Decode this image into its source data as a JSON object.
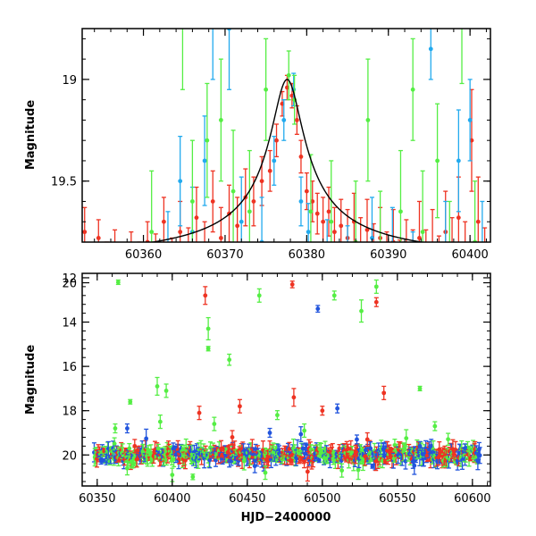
{
  "chart_data": [
    {
      "type": "scatter",
      "panel": "top",
      "xlabel": "",
      "ylabel": "Magnitude",
      "xlim": [
        60352.5,
        60402.5
      ],
      "ylim": [
        19.8,
        18.75
      ],
      "y_inverted": true,
      "xticks": [
        60360,
        60370,
        60380,
        60390,
        60400
      ],
      "yticks": [
        19,
        19.5,
        20
      ],
      "series": [
        {
          "color": "#ee3322",
          "points": [
            [
              60352.8,
              19.75,
              0.12
            ],
            [
              60353.5,
              20.02,
              0.1
            ],
            [
              60354.5,
              19.78,
              0.09
            ],
            [
              60355.5,
              19.9,
              0.1
            ],
            [
              60356.5,
              19.82,
              0.08
            ],
            [
              60357.5,
              19.95,
              0.1
            ],
            [
              60358.5,
              19.85,
              0.1
            ],
            [
              60359.5,
              19.92,
              0.12
            ],
            [
              60360.5,
              19.8,
              0.1
            ],
            [
              60361.5,
              19.88,
              0.12
            ],
            [
              60362.5,
              19.7,
              0.12
            ],
            [
              60363.5,
              19.9,
              0.12
            ],
            [
              60364.5,
              19.75,
              0.15
            ],
            [
              60365.5,
              19.85,
              0.12
            ],
            [
              60366.5,
              19.68,
              0.15
            ],
            [
              60367.5,
              19.82,
              0.12
            ],
            [
              60368.5,
              19.6,
              0.15
            ],
            [
              60369.5,
              19.78,
              0.15
            ],
            [
              60370.5,
              19.66,
              0.14
            ],
            [
              60371.5,
              19.72,
              0.14
            ],
            [
              60372.5,
              19.58,
              0.14
            ],
            [
              60373.5,
              19.6,
              0.12
            ],
            [
              60374.5,
              19.5,
              0.12
            ],
            [
              60375.5,
              19.45,
              0.1
            ],
            [
              60376.3,
              19.3,
              0.08
            ],
            [
              60377.0,
              19.12,
              0.06
            ],
            [
              60377.6,
              19.04,
              0.06
            ],
            [
              60378.2,
              19.08,
              0.06
            ],
            [
              60378.8,
              19.2,
              0.07
            ],
            [
              60379.3,
              19.38,
              0.08
            ],
            [
              60380.0,
              19.55,
              0.09
            ],
            [
              60380.7,
              19.6,
              0.1
            ],
            [
              60381.3,
              19.66,
              0.1
            ],
            [
              60382,
              19.7,
              0.12
            ],
            [
              60382.7,
              19.65,
              0.12
            ],
            [
              60383.4,
              19.75,
              0.12
            ],
            [
              60384.2,
              19.72,
              0.13
            ],
            [
              60385,
              19.78,
              0.14
            ],
            [
              60385.8,
              19.7,
              0.14
            ],
            [
              60386.6,
              19.82,
              0.14
            ],
            [
              60387.4,
              19.74,
              0.15
            ],
            [
              60388.2,
              19.86,
              0.15
            ],
            [
              60389,
              19.78,
              0.15
            ],
            [
              60389.8,
              19.9,
              0.15
            ],
            [
              60390.6,
              19.8,
              0.16
            ],
            [
              60391.4,
              19.95,
              0.16
            ],
            [
              60392.2,
              19.85,
              0.16
            ],
            [
              60393,
              19.9,
              0.16
            ],
            [
              60393.8,
              19.78,
              0.18
            ],
            [
              60394.6,
              19.92,
              0.18
            ],
            [
              60395.4,
              19.82,
              0.18
            ],
            [
              60396.2,
              19.95,
              0.18
            ],
            [
              60397,
              19.75,
              0.2
            ],
            [
              60397.8,
              19.88,
              0.2
            ],
            [
              60398.6,
              19.68,
              0.2
            ],
            [
              60399.4,
              19.9,
              0.2
            ],
            [
              60400.2,
              19.3,
              0.25
            ],
            [
              60401,
              19.7,
              0.22
            ],
            [
              60401.8,
              19.95,
              0.22
            ]
          ]
        },
        {
          "color": "#22aaee",
          "points": [
            [
              60363,
              19.9,
              0.25
            ],
            [
              60364.5,
              19.5,
              0.22
            ],
            [
              60366,
              19.75,
              0.22
            ],
            [
              60367.5,
              19.4,
              0.22
            ],
            [
              60368.5,
              18.7,
              0.3
            ],
            [
              60370.5,
              18.75,
              0.3
            ],
            [
              60372,
              19.7,
              0.22
            ],
            [
              60374.5,
              19.8,
              0.22
            ],
            [
              60376,
              19.4,
              0.12
            ],
            [
              60377.2,
              19.2,
              0.1
            ],
            [
              60378.4,
              19.05,
              0.08
            ],
            [
              60379.3,
              19.6,
              0.12
            ],
            [
              60380.2,
              19.75,
              0.14
            ],
            [
              60382.5,
              19.85,
              0.16
            ],
            [
              60385,
              19.9,
              0.18
            ],
            [
              60388,
              19.78,
              0.2
            ],
            [
              60390.5,
              19.85,
              0.22
            ],
            [
              60393,
              19.95,
              0.2
            ],
            [
              60395.2,
              18.85,
              0.15
            ],
            [
              60397,
              19.82,
              0.22
            ],
            [
              60398.6,
              19.4,
              0.25
            ],
            [
              60400,
              19.2,
              0.2
            ],
            [
              60401.5,
              19.85,
              0.25
            ]
          ]
        },
        {
          "color": "#55ee44",
          "points": [
            [
              60361,
              19.75,
              0.3
            ],
            [
              60364.8,
              18.7,
              0.35
            ],
            [
              60366,
              19.6,
              0.3
            ],
            [
              60367.8,
              19.3,
              0.28
            ],
            [
              60369.5,
              19.2,
              0.3
            ],
            [
              60371,
              19.55,
              0.3
            ],
            [
              60373,
              19.65,
              0.3
            ],
            [
              60375,
              19.05,
              0.25
            ],
            [
              60377.8,
              18.98,
              0.12
            ],
            [
              60378.5,
              19.1,
              0.12
            ],
            [
              60380.5,
              19.65,
              0.28
            ],
            [
              60383,
              19.7,
              0.3
            ],
            [
              60386,
              19.8,
              0.3
            ],
            [
              60387.5,
              19.2,
              0.3
            ],
            [
              60389,
              19.85,
              0.3
            ],
            [
              60391.5,
              19.65,
              0.3
            ],
            [
              60393,
              19.05,
              0.25
            ],
            [
              60394.2,
              19.75,
              0.3
            ],
            [
              60396,
              19.4,
              0.28
            ],
            [
              60397.5,
              19.9,
              0.3
            ],
            [
              60399,
              18.72,
              0.3
            ],
            [
              60400.6,
              19.8,
              0.3
            ]
          ]
        }
      ],
      "model_curve": {
        "color": "#000000",
        "baseline": 19.91,
        "peak_mag": 19.0,
        "peak_x": 60377.6,
        "halfwidth": 2.0
      }
    },
    {
      "type": "scatter",
      "panel": "bottom",
      "xlabel": "HJD−2400000",
      "ylabel": "Magnitude",
      "xlim": [
        60340,
        60612
      ],
      "ylim": [
        21.4,
        11.8
      ],
      "y_inverted": true,
      "xticks": [
        60350,
        60400,
        60450,
        60500,
        60550,
        60600
      ],
      "yticks": [
        12,
        14,
        16,
        18,
        20
      ],
      "baseline_band": {
        "x_start": 60348,
        "x_end": 60605,
        "mag": 20.0,
        "scatter": 0.3
      },
      "series": [
        {
          "color": "#ee3322",
          "points": [
            [
              60422,
              12.8,
              0.4
            ],
            [
              60480,
              12.3,
              0.15
            ],
            [
              60536,
              13.1,
              0.2
            ],
            [
              60418,
              18.1,
              0.3
            ],
            [
              60445,
              17.8,
              0.3
            ],
            [
              60481,
              17.4,
              0.4
            ],
            [
              60541,
              17.2,
              0.3
            ],
            [
              60500,
              18.0,
              0.2
            ],
            [
              60440,
              19.2,
              0.3
            ],
            [
              60375,
              19.6,
              0.3
            ],
            [
              60530,
              19.3,
              0.3
            ]
          ]
        },
        {
          "color": "#2255dd",
          "points": [
            [
              60497,
              13.4,
              0.15
            ],
            [
              60510,
              17.9,
              0.2
            ],
            [
              60370,
              18.8,
              0.2
            ],
            [
              60465,
              19.0,
              0.2
            ],
            [
              60523,
              19.3,
              0.2
            ],
            [
              60455,
              20.5,
              0.3
            ],
            [
              60565,
              19.6,
              0.2
            ],
            [
              60595,
              19.7,
              0.2
            ]
          ]
        },
        {
          "color": "#55ee44",
          "points": [
            [
              60364,
              12.2,
              0.1
            ],
            [
              60458,
              12.8,
              0.3
            ],
            [
              60508,
              12.8,
              0.2
            ],
            [
              60536,
              12.4,
              0.3
            ],
            [
              60526,
              13.5,
              0.5
            ],
            [
              60424,
              14.3,
              0.5
            ],
            [
              60424,
              15.2,
              0.1
            ],
            [
              60438,
              15.7,
              0.25
            ],
            [
              60565,
              17.0,
              0.1
            ],
            [
              60372,
              17.6,
              0.1
            ],
            [
              60390,
              16.9,
              0.4
            ],
            [
              60396,
              17.1,
              0.3
            ],
            [
              60362,
              18.8,
              0.2
            ],
            [
              60392,
              18.5,
              0.3
            ],
            [
              60428,
              18.6,
              0.3
            ],
            [
              60470,
              18.2,
              0.2
            ],
            [
              60488,
              18.9,
              0.3
            ],
            [
              60575,
              18.7,
              0.2
            ],
            [
              60370,
              20.6,
              0.3
            ],
            [
              60400,
              20.9,
              0.3
            ],
            [
              60462,
              20.8,
              0.3
            ],
            [
              60513,
              20.7,
              0.3
            ]
          ]
        }
      ]
    }
  ]
}
